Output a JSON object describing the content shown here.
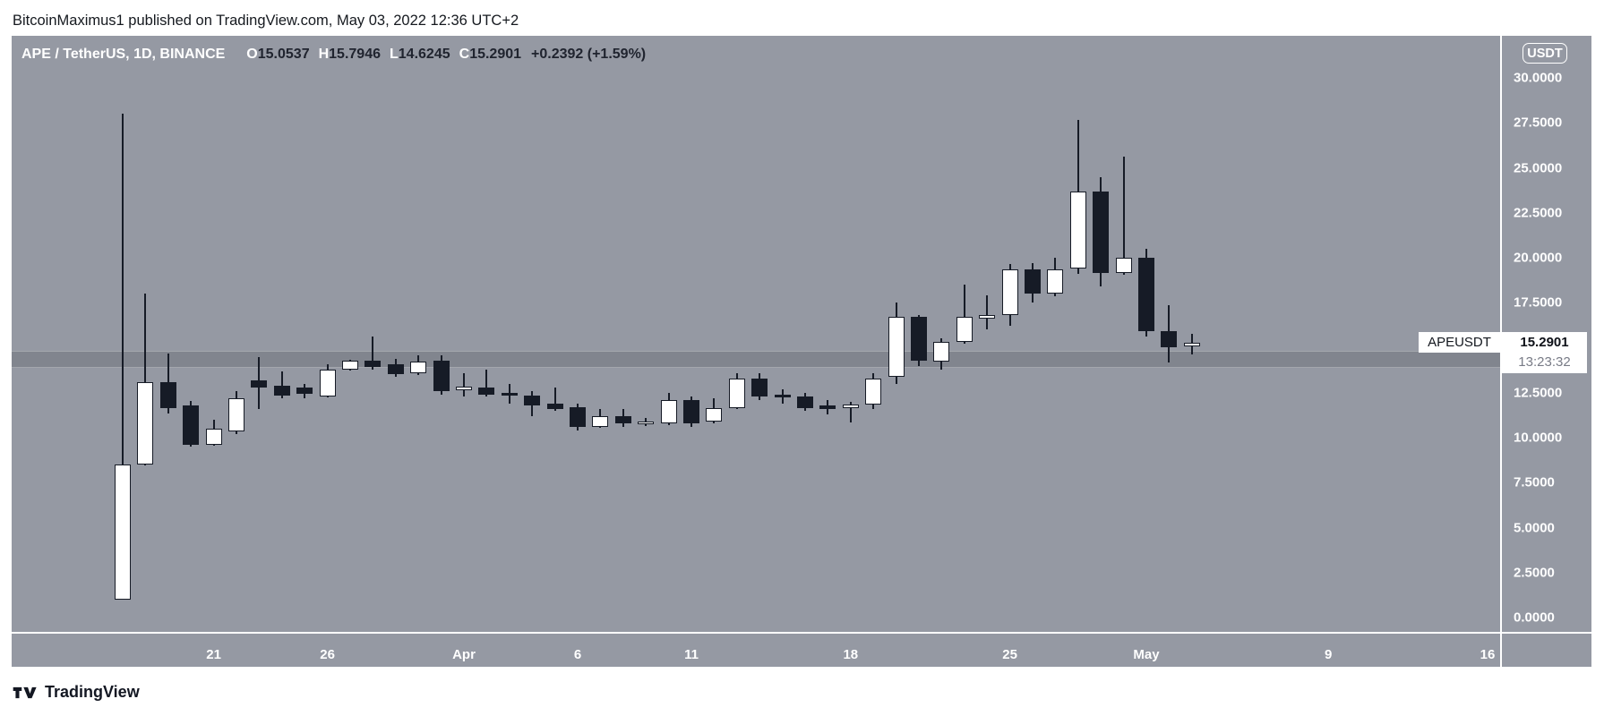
{
  "page": {
    "attribution": "BitcoinMaximus1 published on TradingView.com, May 03, 2022 12:36 UTC+2",
    "footer_logo_text": "TradingView"
  },
  "chart_header": {
    "symbol_title": "APE / TetherUS, 1D, BINANCE",
    "ohlc": [
      {
        "label": "O",
        "value": "15.0537"
      },
      {
        "label": "H",
        "value": "15.7946"
      },
      {
        "label": "L",
        "value": "14.6245"
      },
      {
        "label": "C",
        "value": "15.2901"
      }
    ],
    "change": "+0.2392 (+1.59%)"
  },
  "price_axis": {
    "currency_badge": "USDT",
    "ticks": [
      {
        "label": "30.0000",
        "value": 30
      },
      {
        "label": "27.5000",
        "value": 27.5
      },
      {
        "label": "25.0000",
        "value": 25
      },
      {
        "label": "22.5000",
        "value": 22.5
      },
      {
        "label": "20.0000",
        "value": 20
      },
      {
        "label": "17.5000",
        "value": 17.5
      },
      {
        "label": "15.0000",
        "value": 15
      },
      {
        "label": "12.5000",
        "value": 12.5
      },
      {
        "label": "10.0000",
        "value": 10
      },
      {
        "label": "7.5000",
        "value": 7.5
      },
      {
        "label": "5.0000",
        "value": 5
      },
      {
        "label": "2.5000",
        "value": 2.5
      },
      {
        "label": "0.0000",
        "value": 0
      }
    ]
  },
  "time_axis": {
    "ticks": [
      {
        "label": "21",
        "day": 4
      },
      {
        "label": "26",
        "day": 9
      },
      {
        "label": "Apr",
        "day": 15
      },
      {
        "label": "6",
        "day": 20
      },
      {
        "label": "11",
        "day": 25
      },
      {
        "label": "18",
        "day": 32
      },
      {
        "label": "25",
        "day": 39
      },
      {
        "label": "May",
        "day": 45
      },
      {
        "label": "9",
        "day": 53
      },
      {
        "label": "16",
        "day": 60
      }
    ]
  },
  "last_price": {
    "symbol_label": "APEUSDT",
    "price": "15.2901",
    "countdown": "13:23:32",
    "value": 15.2901
  },
  "support_zone": {
    "price_from": 13.98,
    "price_to": 14.85
  },
  "colors": {
    "panel_background": "#9599a3",
    "bull_candle": "#ffffff",
    "bear_candle": "#161b26",
    "axis_text": "#ffffff",
    "logo_dark": "#131722"
  },
  "chart_data": {
    "type": "candlestick",
    "title": "APE / TetherUS, 1D, BINANCE",
    "symbol": "APEUSDT",
    "exchange": "BINANCE",
    "interval": "1D",
    "ylabel": "USDT",
    "ylim": [
      0,
      30
    ],
    "grid": false,
    "candles": [
      {
        "date": "Mar 17",
        "o": 1.0,
        "h": 28.0,
        "l": 1.0,
        "c": 8.5
      },
      {
        "date": "Mar 18",
        "o": 8.5,
        "h": 18.0,
        "l": 8.45,
        "c": 13.1
      },
      {
        "date": "Mar 19",
        "o": 13.1,
        "h": 14.7,
        "l": 11.35,
        "c": 11.65
      },
      {
        "date": "Mar 20",
        "o": 11.8,
        "h": 12.05,
        "l": 9.5,
        "c": 9.6
      },
      {
        "date": "Mar 21",
        "o": 9.6,
        "h": 11.0,
        "l": 9.55,
        "c": 10.5
      },
      {
        "date": "Mar 22",
        "o": 10.35,
        "h": 12.6,
        "l": 10.2,
        "c": 12.2
      },
      {
        "date": "Mar 23",
        "o": 13.2,
        "h": 14.5,
        "l": 11.6,
        "c": 12.8
      },
      {
        "date": "Mar 24",
        "o": 12.9,
        "h": 13.7,
        "l": 12.2,
        "c": 12.35
      },
      {
        "date": "Mar 25",
        "o": 12.8,
        "h": 13.0,
        "l": 12.2,
        "c": 12.45
      },
      {
        "date": "Mar 26",
        "o": 12.3,
        "h": 14.1,
        "l": 12.25,
        "c": 13.8
      },
      {
        "date": "Mar 27",
        "o": 13.8,
        "h": 14.35,
        "l": 13.75,
        "c": 14.3
      },
      {
        "date": "Mar 28",
        "o": 14.3,
        "h": 15.6,
        "l": 13.8,
        "c": 13.95
      },
      {
        "date": "Mar 29",
        "o": 14.1,
        "h": 14.4,
        "l": 13.4,
        "c": 13.55
      },
      {
        "date": "Mar 30",
        "o": 13.6,
        "h": 14.6,
        "l": 13.5,
        "c": 14.25
      },
      {
        "date": "Mar 31",
        "o": 14.3,
        "h": 14.6,
        "l": 12.4,
        "c": 12.6
      },
      {
        "date": "Apr 1",
        "o": 12.65,
        "h": 13.6,
        "l": 12.3,
        "c": 12.85
      },
      {
        "date": "Apr 2",
        "o": 12.8,
        "h": 13.8,
        "l": 12.3,
        "c": 12.4
      },
      {
        "date": "Apr 3",
        "o": 12.5,
        "h": 13.0,
        "l": 11.9,
        "c": 12.35
      },
      {
        "date": "Apr 4",
        "o": 12.35,
        "h": 12.6,
        "l": 11.2,
        "c": 11.8
      },
      {
        "date": "Apr 5",
        "o": 11.9,
        "h": 12.8,
        "l": 11.5,
        "c": 11.6
      },
      {
        "date": "Apr 6",
        "o": 11.7,
        "h": 11.9,
        "l": 10.4,
        "c": 10.6
      },
      {
        "date": "Apr 7",
        "o": 10.6,
        "h": 11.6,
        "l": 10.55,
        "c": 11.2
      },
      {
        "date": "Apr 8",
        "o": 11.2,
        "h": 11.6,
        "l": 10.6,
        "c": 10.8
      },
      {
        "date": "Apr 9",
        "o": 10.75,
        "h": 11.1,
        "l": 10.65,
        "c": 10.9
      },
      {
        "date": "Apr 10",
        "o": 10.8,
        "h": 12.5,
        "l": 10.7,
        "c": 12.1
      },
      {
        "date": "Apr 11",
        "o": 12.1,
        "h": 12.3,
        "l": 10.6,
        "c": 10.8
      },
      {
        "date": "Apr 12",
        "o": 10.9,
        "h": 12.2,
        "l": 10.8,
        "c": 11.65
      },
      {
        "date": "Apr 13",
        "o": 11.65,
        "h": 13.6,
        "l": 11.6,
        "c": 13.3
      },
      {
        "date": "Apr 14",
        "o": 13.3,
        "h": 13.6,
        "l": 12.1,
        "c": 12.3
      },
      {
        "date": "Apr 15",
        "o": 12.4,
        "h": 12.7,
        "l": 11.9,
        "c": 12.25
      },
      {
        "date": "Apr 16",
        "o": 12.3,
        "h": 12.5,
        "l": 11.5,
        "c": 11.65
      },
      {
        "date": "Apr 17",
        "o": 11.8,
        "h": 12.1,
        "l": 11.3,
        "c": 11.6
      },
      {
        "date": "Apr 18",
        "o": 11.65,
        "h": 12.0,
        "l": 10.85,
        "c": 11.85
      },
      {
        "date": "Apr 19",
        "o": 11.85,
        "h": 13.6,
        "l": 11.6,
        "c": 13.3
      },
      {
        "date": "Apr 20",
        "o": 13.4,
        "h": 17.5,
        "l": 13.0,
        "c": 16.7
      },
      {
        "date": "Apr 21",
        "o": 16.7,
        "h": 16.8,
        "l": 14.0,
        "c": 14.3
      },
      {
        "date": "Apr 22",
        "o": 14.25,
        "h": 15.5,
        "l": 13.8,
        "c": 15.3
      },
      {
        "date": "Apr 23",
        "o": 15.3,
        "h": 18.5,
        "l": 15.2,
        "c": 16.7
      },
      {
        "date": "Apr 24",
        "o": 16.6,
        "h": 17.9,
        "l": 16.0,
        "c": 16.8
      },
      {
        "date": "Apr 25",
        "o": 16.8,
        "h": 19.65,
        "l": 16.2,
        "c": 19.35
      },
      {
        "date": "Apr 26",
        "o": 19.35,
        "h": 19.7,
        "l": 17.5,
        "c": 18.0
      },
      {
        "date": "Apr 27",
        "o": 18.0,
        "h": 20.0,
        "l": 17.85,
        "c": 19.35
      },
      {
        "date": "Apr 28",
        "o": 19.4,
        "h": 27.65,
        "l": 19.1,
        "c": 23.7
      },
      {
        "date": "Apr 29",
        "o": 23.7,
        "h": 24.5,
        "l": 18.4,
        "c": 19.15
      },
      {
        "date": "Apr 30",
        "o": 19.15,
        "h": 25.6,
        "l": 19.05,
        "c": 20.0
      },
      {
        "date": "May 1",
        "o": 20.0,
        "h": 20.5,
        "l": 15.6,
        "c": 15.9
      },
      {
        "date": "May 2",
        "o": 15.9,
        "h": 17.35,
        "l": 14.2,
        "c": 15.0
      },
      {
        "date": "May 3",
        "o": 15.0537,
        "h": 15.7946,
        "l": 14.6245,
        "c": 15.2901
      }
    ]
  }
}
